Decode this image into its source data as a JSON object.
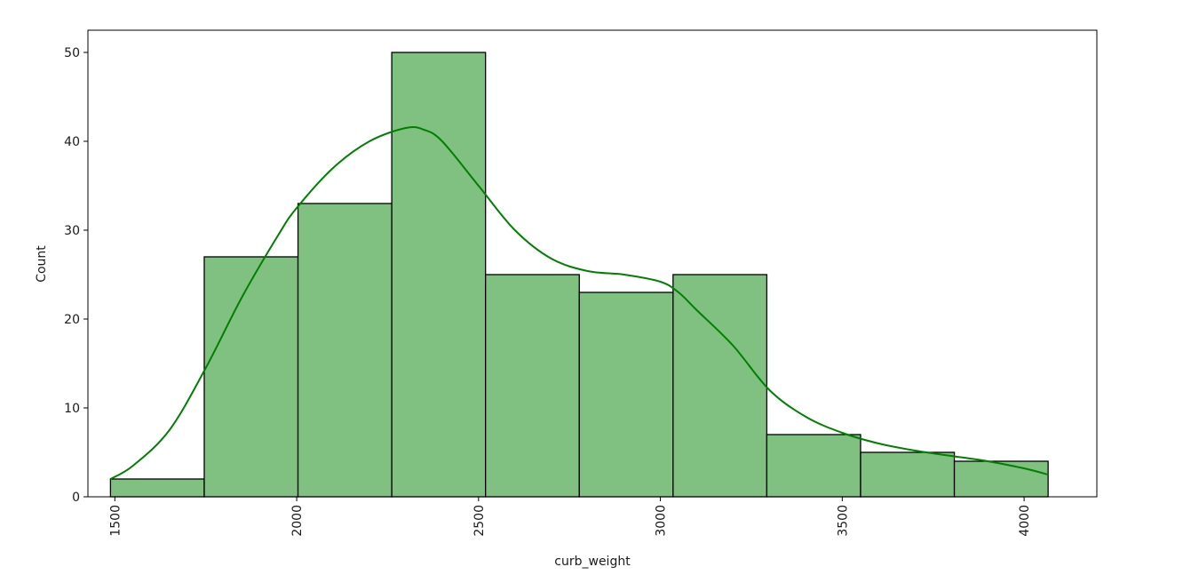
{
  "chart_data": {
    "type": "bar",
    "title": "",
    "xlabel": "curb_weight",
    "ylabel": "Count",
    "xlim": [
      1426,
      4200
    ],
    "ylim": [
      0,
      52.5
    ],
    "xticks": [
      1500,
      2000,
      2500,
      3000,
      3500,
      4000
    ],
    "yticks": [
      0,
      10,
      20,
      30,
      40,
      50
    ],
    "grid": false,
    "bins": [
      {
        "start": 1488,
        "end": 1745.8,
        "count": 2
      },
      {
        "start": 1745.8,
        "end": 2003.6,
        "count": 27
      },
      {
        "start": 2003.6,
        "end": 2261.4,
        "count": 33
      },
      {
        "start": 2261.4,
        "end": 2519.2,
        "count": 50
      },
      {
        "start": 2519.2,
        "end": 2777.0,
        "count": 25
      },
      {
        "start": 2777.0,
        "end": 3034.8,
        "count": 23
      },
      {
        "start": 3034.8,
        "end": 3292.6,
        "count": 25
      },
      {
        "start": 3292.6,
        "end": 3550.4,
        "count": 7
      },
      {
        "start": 3550.4,
        "end": 3808.2,
        "count": 5
      },
      {
        "start": 3808.2,
        "end": 4066.0,
        "count": 4
      }
    ],
    "kde": {
      "x": [
        1488,
        1550,
        1650,
        1750,
        1850,
        1950,
        2000,
        2100,
        2200,
        2300,
        2350,
        2400,
        2500,
        2600,
        2700,
        2800,
        2900,
        3000,
        3050,
        3100,
        3200,
        3300,
        3400,
        3500,
        3600,
        3700,
        3800,
        3900,
        4000,
        4066
      ],
      "y": [
        2,
        3.5,
        7.5,
        14.5,
        22.5,
        29.5,
        32.5,
        37,
        40,
        41.5,
        41.3,
        40,
        35,
        30,
        26.8,
        25.4,
        25,
        24.2,
        23,
        21,
        17,
        12,
        9,
        7.2,
        6,
        5.2,
        4.6,
        4,
        3.2,
        2.5
      ]
    },
    "colors": {
      "bar_fill": "#80c080",
      "bar_edge": "#000000",
      "kde_line": "#008000"
    }
  }
}
